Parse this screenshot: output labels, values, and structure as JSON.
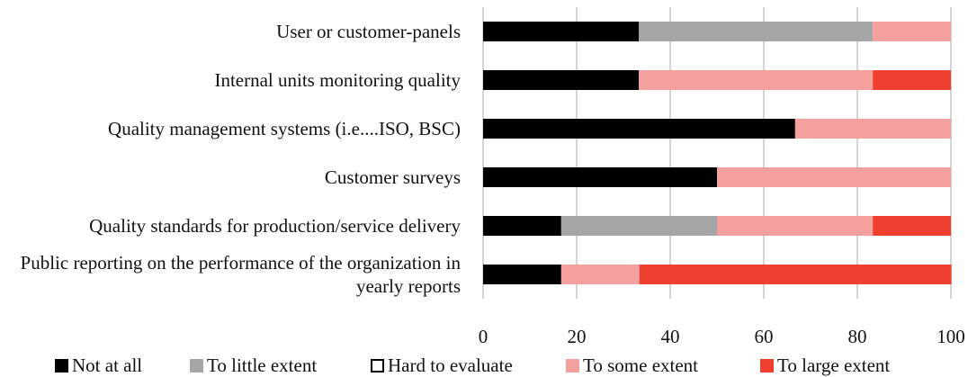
{
  "chart_data": {
    "type": "stacked-bar-horizontal",
    "categories": [
      "User or customer-panels",
      "Internal units monitoring quality",
      "Quality management systems (i.e....ISO, BSC)",
      "Customer surveys",
      "Quality standards for production/service delivery",
      "Public reporting on the performance of the organization in yearly reports"
    ],
    "series": [
      {
        "name": "Not at all",
        "color": "#000000",
        "values": [
          33.3,
          33.3,
          66.7,
          50,
          16.7,
          16.7
        ]
      },
      {
        "name": "To little extent",
        "color": "#a6a6a8",
        "values": [
          50,
          0,
          0,
          0,
          33.3,
          0
        ]
      },
      {
        "name": "Hard to evaluate",
        "color": "#ffffff",
        "values": [
          0,
          0,
          0,
          0,
          0,
          0
        ]
      },
      {
        "name": "To some extent",
        "color": "#f4a09f",
        "values": [
          16.7,
          50,
          33.3,
          50,
          33.3,
          16.7
        ]
      },
      {
        "name": "To large extent",
        "color": "#ef402f",
        "values": [
          0,
          16.7,
          0,
          0,
          16.7,
          66.7
        ]
      }
    ],
    "xlim": [
      0,
      100
    ],
    "xticks": [
      0,
      20,
      40,
      60,
      80,
      100
    ],
    "grid": true,
    "legend": "bottom"
  }
}
